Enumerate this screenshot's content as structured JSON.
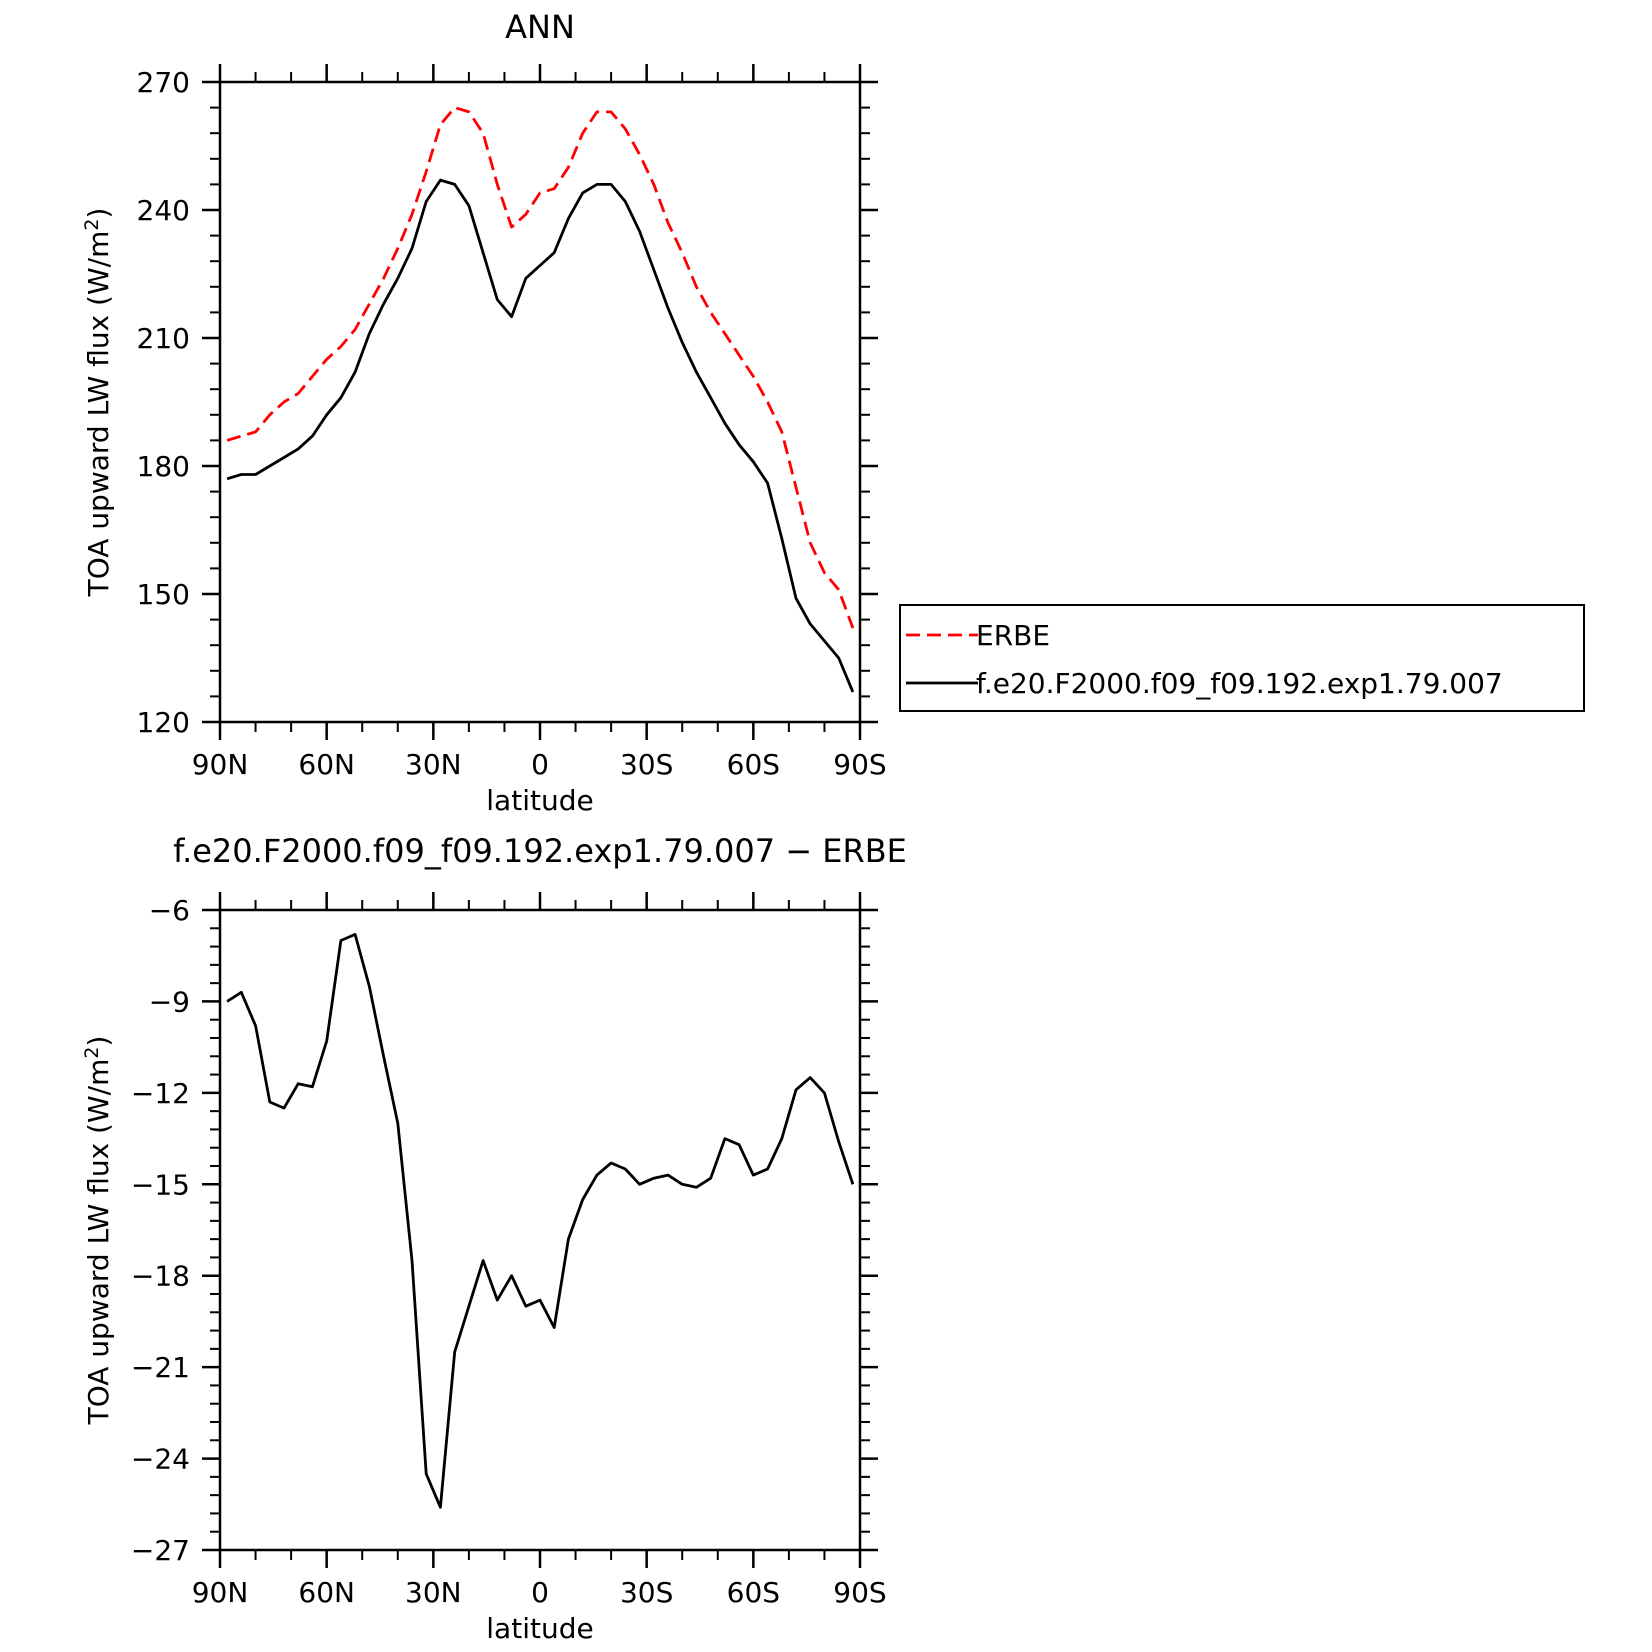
{
  "chart_data": [
    {
      "type": "line",
      "title": "ANN",
      "xlabel": "latitude",
      "ylabel": "TOA upward LW flux (W/m²)",
      "ylabel_parts": {
        "main": "TOA upward LW flux (W/m",
        "sup": "2",
        "close": ")"
      },
      "xlim": [
        90,
        -90
      ],
      "ylim": [
        120,
        270
      ],
      "xticks": [
        90,
        60,
        30,
        0,
        -30,
        -60,
        -90
      ],
      "xticklabels": [
        "90N",
        "60N",
        "30N",
        "0",
        "30S",
        "60S",
        "90S"
      ],
      "yticks": [
        120,
        150,
        180,
        210,
        240,
        270
      ],
      "yticklabels": [
        "120",
        "150",
        "180",
        "210",
        "240",
        "270"
      ],
      "grid": false,
      "legend_position": "right",
      "series": [
        {
          "name": "ERBE",
          "color": "#ff0000",
          "dashed": true,
          "x": [
            88,
            84,
            80,
            76,
            72,
            68,
            64,
            60,
            56,
            52,
            48,
            44,
            40,
            36,
            32,
            28,
            24,
            20,
            16,
            12,
            8,
            4,
            0,
            -4,
            -8,
            -12,
            -16,
            -20,
            -24,
            -28,
            -32,
            -36,
            -40,
            -44,
            -48,
            -52,
            -56,
            -60,
            -64,
            -68,
            -72,
            -76,
            -80,
            -84,
            -88
          ],
          "values": [
            186,
            187,
            188,
            192,
            195,
            197,
            201,
            205,
            208,
            212,
            218,
            224,
            231,
            239,
            249,
            260,
            264,
            263,
            258,
            246,
            236,
            239,
            244,
            245,
            250,
            258,
            263,
            263,
            259,
            253,
            246,
            237,
            230,
            222,
            216,
            211,
            206,
            201,
            195,
            188,
            175,
            162,
            155,
            151,
            142
          ]
        },
        {
          "name": "f.e20.F2000.f09_f09.192.exp1.79.007",
          "color": "#000000",
          "dashed": false,
          "x": [
            88,
            84,
            80,
            76,
            72,
            68,
            64,
            60,
            56,
            52,
            48,
            44,
            40,
            36,
            32,
            28,
            24,
            20,
            16,
            12,
            8,
            4,
            0,
            -4,
            -8,
            -12,
            -16,
            -20,
            -24,
            -28,
            -32,
            -36,
            -40,
            -44,
            -48,
            -52,
            -56,
            -60,
            -64,
            -68,
            -72,
            -76,
            -80,
            -84,
            -88
          ],
          "values": [
            177,
            178,
            178,
            180,
            182,
            184,
            187,
            192,
            196,
            202,
            211,
            218,
            224,
            231,
            242,
            247,
            246,
            241,
            230,
            219,
            215,
            224,
            227,
            230,
            238,
            244,
            246,
            246,
            242,
            235,
            226,
            217,
            209,
            202,
            196,
            190,
            185,
            181,
            176,
            163,
            149,
            143,
            139,
            135,
            127
          ]
        }
      ]
    },
    {
      "type": "line",
      "title": "f.e20.F2000.f09_f09.192.exp1.79.007 − ERBE",
      "xlabel": "latitude",
      "ylabel": "TOA upward LW flux (W/m²)",
      "ylabel_parts": {
        "main": "TOA upward LW flux (W/m",
        "sup": "2",
        "close": ")"
      },
      "xlim": [
        90,
        -90
      ],
      "ylim": [
        -27,
        -6
      ],
      "xticks": [
        90,
        60,
        30,
        0,
        -30,
        -60,
        -90
      ],
      "xticklabels": [
        "90N",
        "60N",
        "30N",
        "0",
        "30S",
        "60S",
        "90S"
      ],
      "yticks": [
        -6,
        -9,
        -12,
        -15,
        -18,
        -21,
        -24,
        -27
      ],
      "yticklabels": [
        "−6",
        "−9",
        "−12",
        "−15",
        "−18",
        "−21",
        "−24",
        "−27"
      ],
      "grid": false,
      "series": [
        {
          "color": "#000000",
          "dashed": false,
          "x": [
            88,
            84,
            80,
            76,
            72,
            68,
            64,
            60,
            56,
            52,
            48,
            44,
            40,
            36,
            32,
            28,
            24,
            20,
            16,
            12,
            8,
            4,
            0,
            -4,
            -8,
            -12,
            -16,
            -20,
            -24,
            -28,
            -32,
            -36,
            -40,
            -44,
            -48,
            -52,
            -56,
            -60,
            -64,
            -68,
            -72,
            -76,
            -80,
            -84,
            -88
          ],
          "values": [
            -9.0,
            -8.7,
            -9.8,
            -12.3,
            -12.5,
            -11.7,
            -11.8,
            -10.3,
            -7.0,
            -6.8,
            -8.5,
            -10.8,
            -13.0,
            -17.5,
            -24.5,
            -25.6,
            -20.5,
            -19.0,
            -17.5,
            -18.8,
            -18.0,
            -19.0,
            -18.8,
            -19.7,
            -16.8,
            -15.5,
            -14.7,
            -14.3,
            -14.5,
            -15.0,
            -14.8,
            -14.7,
            -15.0,
            -15.1,
            -14.8,
            -13.5,
            -13.7,
            -14.7,
            -14.5,
            -13.5,
            -11.9,
            -11.5,
            -12.0,
            -13.6,
            -15.0
          ]
        }
      ]
    }
  ]
}
